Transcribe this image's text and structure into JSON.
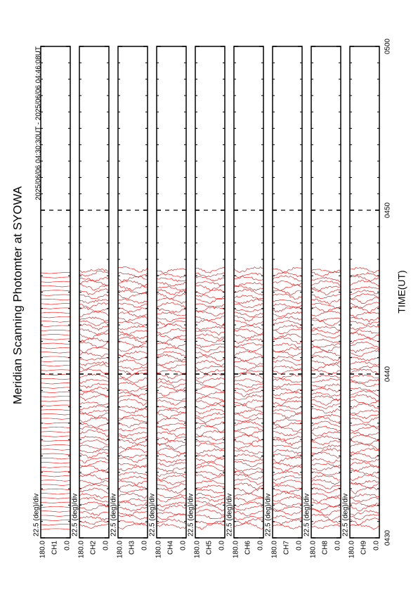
{
  "chart_data": {
    "type": "stackplot",
    "title": "Meridian Scanning Photomter at SYOWA",
    "subtitle": "2025/06/06 04:30:30UT - 2025/06/06 04:46:08UT",
    "xlabel": "TIME(UT)",
    "xlim": [
      0,
      30
    ],
    "xticks": [
      {
        "value": 0,
        "label": "0430"
      },
      {
        "value": 10,
        "label": "0440"
      },
      {
        "value": 20,
        "label": "0450"
      },
      {
        "value": 30,
        "label": "0500"
      }
    ],
    "data_range": [
      0.5,
      16.13
    ],
    "color": "#ff0000",
    "scale_label": "22.5 (deg)/div",
    "ylim": [
      {
        "value": 180,
        "label": "180.0"
      },
      {
        "value": 0,
        "label": "0.0"
      }
    ],
    "panels": [
      "CH1",
      "CH2",
      "CH3",
      "CH4",
      "CH5",
      "CH6",
      "CH7",
      "CH8",
      "CH9"
    ]
  }
}
